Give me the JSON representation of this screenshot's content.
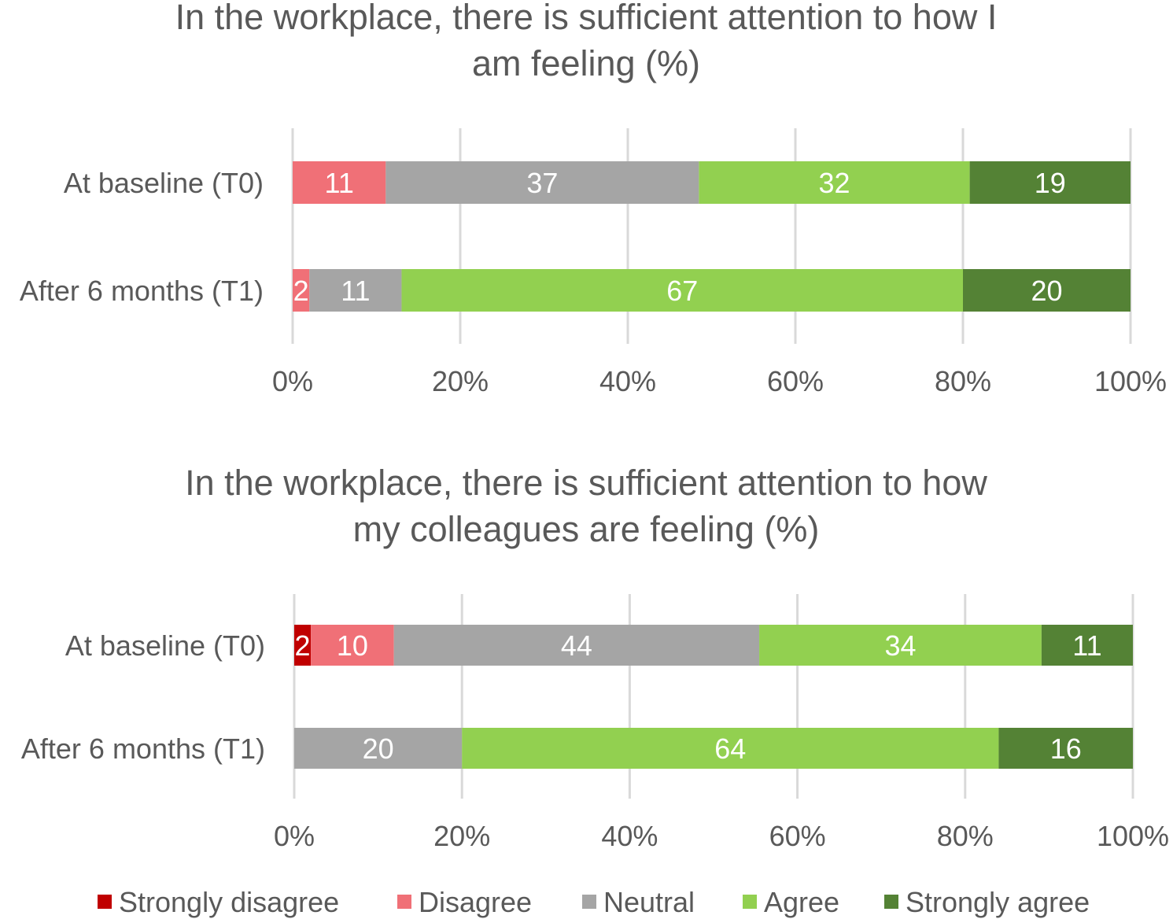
{
  "chart_data": [
    {
      "type": "bar",
      "orientation": "horizontal",
      "stacked": "percent",
      "title": [
        "In the workplace, there is sufficient attention to how I",
        "am feeling (%)"
      ],
      "categories": [
        "At baseline (T0)",
        "After 6 months (T1)"
      ],
      "series": [
        {
          "name": "Strongly disagree",
          "color": "#C00000",
          "values": [
            0,
            0
          ]
        },
        {
          "name": "Disagree",
          "color": "#F07077",
          "values": [
            11,
            2
          ]
        },
        {
          "name": "Neutral",
          "color": "#A5A5A5",
          "values": [
            37,
            11
          ]
        },
        {
          "name": "Agree",
          "color": "#92D050",
          "values": [
            32,
            67
          ]
        },
        {
          "name": "Strongly agree",
          "color": "#548235",
          "values": [
            19,
            20
          ]
        }
      ],
      "xticks": [
        "0%",
        "20%",
        "40%",
        "60%",
        "80%",
        "100%"
      ],
      "xlim": [
        0,
        100
      ],
      "grid": true
    },
    {
      "type": "bar",
      "orientation": "horizontal",
      "stacked": "percent",
      "title": [
        "In the workplace, there is sufficient attention to how",
        "my colleagues are feeling (%)"
      ],
      "categories": [
        "At baseline (T0)",
        "After 6 months (T1)"
      ],
      "series": [
        {
          "name": "Strongly disagree",
          "color": "#C00000",
          "values": [
            2,
            0
          ]
        },
        {
          "name": "Disagree",
          "color": "#F07077",
          "values": [
            10,
            0
          ]
        },
        {
          "name": "Neutral",
          "color": "#A5A5A5",
          "values": [
            44,
            20
          ]
        },
        {
          "name": "Agree",
          "color": "#92D050",
          "values": [
            34,
            64
          ]
        },
        {
          "name": "Strongly agree",
          "color": "#548235",
          "values": [
            11,
            16
          ]
        }
      ],
      "xticks": [
        "0%",
        "20%",
        "40%",
        "60%",
        "80%",
        "100%"
      ],
      "xlim": [
        0,
        100
      ],
      "grid": true
    }
  ],
  "legend": {
    "position": "bottom",
    "items": [
      "Strongly disagree",
      "Disagree",
      "Neutral",
      "Agree",
      "Strongly agree"
    ]
  }
}
